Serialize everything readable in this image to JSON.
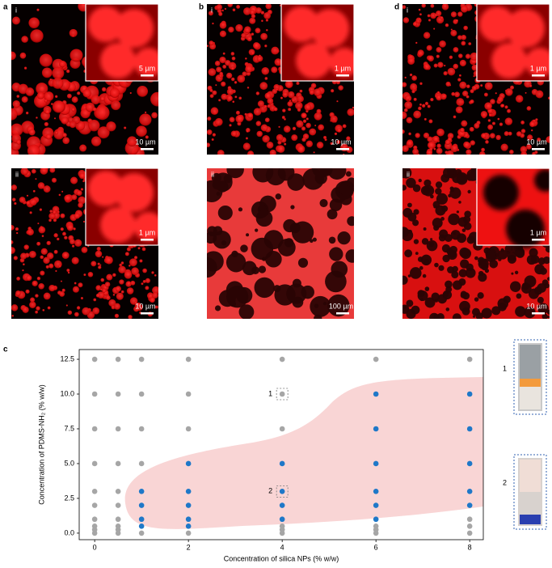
{
  "panels": [
    {
      "label": "a",
      "images": [
        {
          "numeral": "i",
          "inset_scale": "5 µm",
          "scale": "10 µm"
        },
        {
          "numeral": "ii",
          "inset_scale": "1 µm",
          "scale": "10 µm"
        }
      ]
    },
    {
      "label": "b",
      "images": [
        {
          "numeral": "i",
          "inset_scale": "1 µm",
          "scale": "10 µm"
        },
        {
          "numeral": "ii",
          "scale": "100 µm"
        }
      ]
    },
    {
      "label": "d",
      "images": [
        {
          "numeral": "i",
          "inset_scale": "1 µm",
          "scale": "10 µm"
        },
        {
          "numeral": "ii",
          "inset_scale": "1 µm",
          "scale": "10 µm"
        }
      ]
    }
  ],
  "chart_label": "c",
  "chart_data": {
    "type": "scatter",
    "x_label": "Concentration of silica NPs (% w/w)",
    "y_label": "Concentration of PDMS-NH₂ (% w/w)",
    "xlim": [
      -0.33,
      8.29
    ],
    "ylim": [
      -0.47,
      13.2
    ],
    "xticks": [
      0,
      2,
      4,
      6,
      8
    ],
    "yticks": [
      {
        "value": 0,
        "label": "0.0"
      },
      2.5,
      {
        "value": 5,
        "label": "5.0"
      },
      7.5,
      {
        "value": 10,
        "label": "10.0"
      },
      12.5
    ],
    "series": [
      {
        "color": "#a6a6a6",
        "x": [
          0,
          0,
          0,
          0,
          0,
          0,
          0,
          0,
          0,
          0,
          0.5,
          0.5,
          0.5,
          0.5,
          0.5,
          0.5,
          0.5,
          0.5,
          0.5,
          0.5,
          1,
          1,
          1,
          1,
          1,
          2,
          2,
          2,
          2,
          4,
          4,
          4,
          4,
          4,
          4,
          6,
          6,
          6,
          6,
          8,
          8,
          8,
          8
        ],
        "y": [
          12.5,
          10,
          7.5,
          5,
          3,
          2,
          1,
          0.5,
          0.25,
          0,
          12.5,
          10,
          7.5,
          5,
          3,
          2,
          1,
          0.5,
          0.25,
          0,
          12.5,
          10,
          7.5,
          5,
          0,
          12.5,
          10,
          7.5,
          0,
          12.5,
          10,
          7.5,
          0.5,
          0.25,
          0,
          12.5,
          0.5,
          0.25,
          0,
          12.5,
          1,
          0.5,
          0
        ]
      },
      {
        "color": "#1f78c8",
        "x": [
          1,
          1,
          1,
          1,
          2,
          2,
          2,
          2,
          2,
          4,
          4,
          4,
          4,
          6,
          6,
          6,
          6,
          6,
          6,
          8,
          8,
          8,
          8,
          8
        ],
        "y": [
          3,
          2,
          1,
          0.5,
          5,
          3,
          2,
          1,
          0.5,
          5,
          3,
          2,
          1,
          10,
          7.5,
          5,
          3,
          2,
          1,
          10,
          7.5,
          5,
          3,
          2
        ]
      }
    ],
    "annotations": [
      {
        "text": "1",
        "x": 4,
        "y": 10
      },
      {
        "text": "2",
        "x": 4,
        "y": 3
      }
    ]
  },
  "photos": [
    {
      "label": "1"
    },
    {
      "label": "2"
    }
  ]
}
